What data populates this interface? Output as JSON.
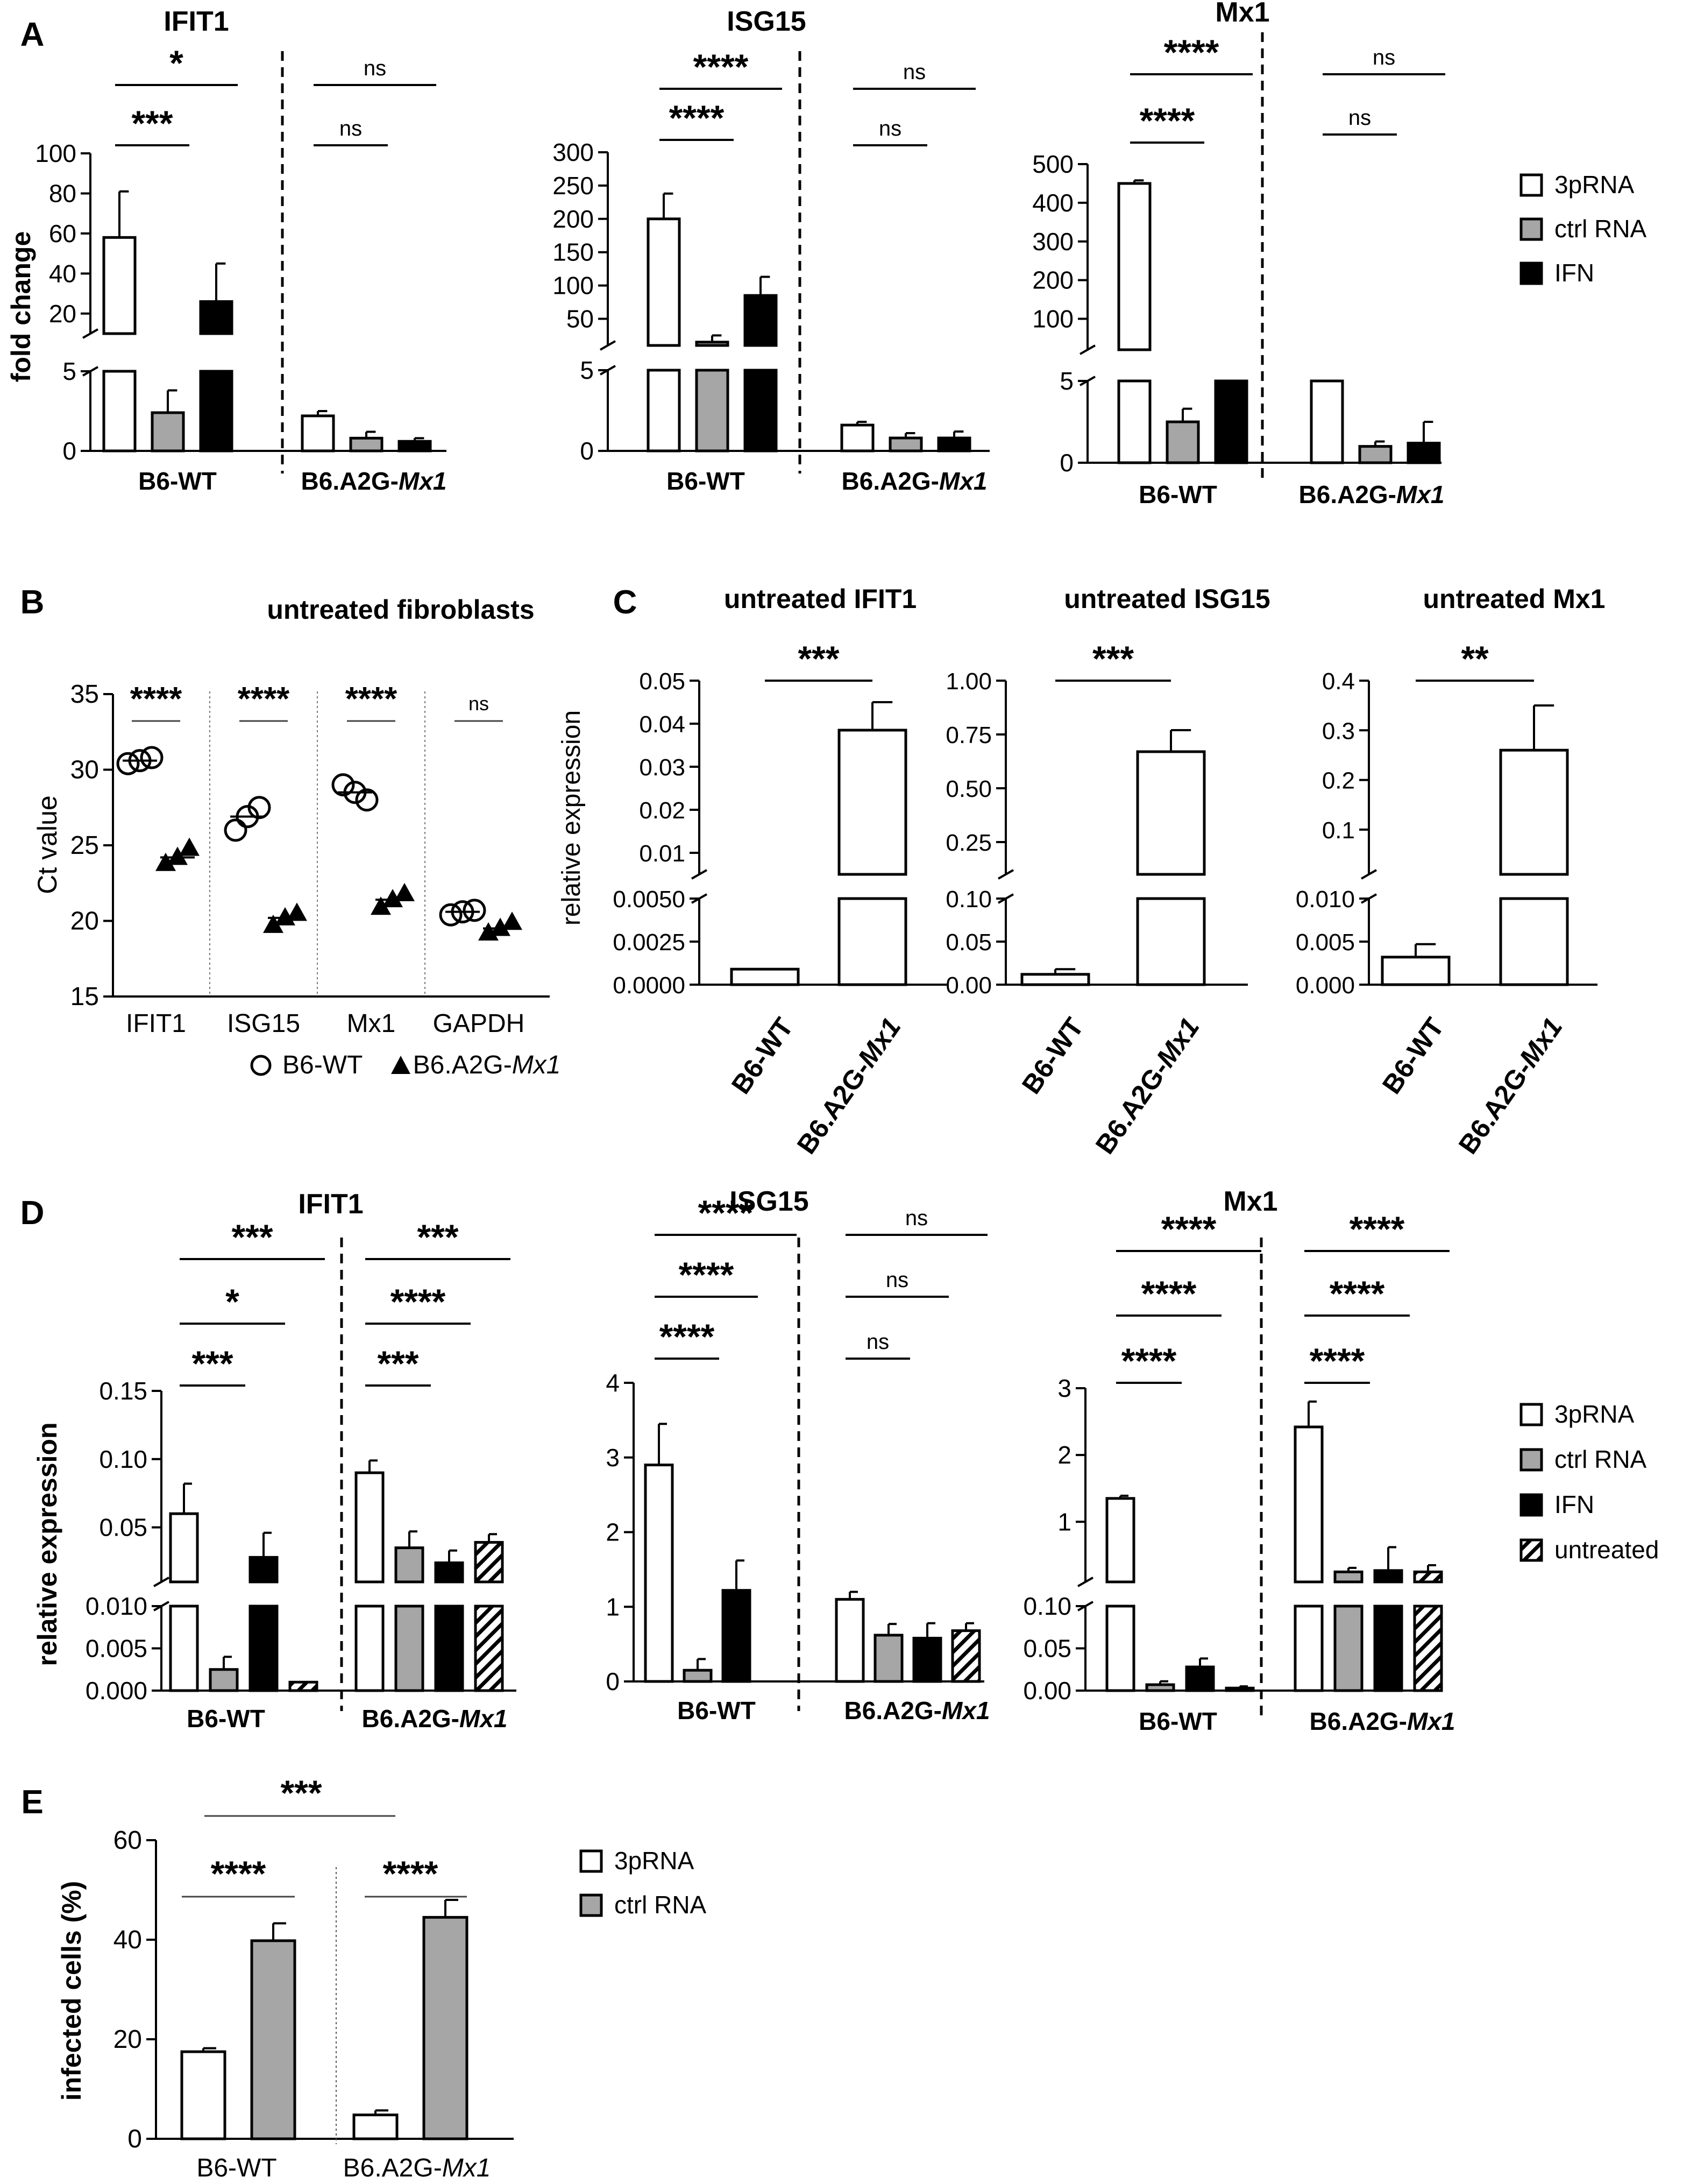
{
  "figure": {
    "panel_letters": [
      "A",
      "B",
      "C",
      "D",
      "E"
    ]
  },
  "colors": {
    "white_bar": "#ffffff",
    "gray_bar": "#a6a6a6",
    "black_bar": "#000000",
    "hatch_bar": "#000000",
    "axis": "#000000",
    "light_line": "#555555"
  },
  "chart_data": [
    {
      "id": "A1",
      "type": "bar",
      "panel": "A",
      "title": "IFIT1",
      "ylabel": "fold change",
      "groups": [
        "B6-WT",
        "B6.A2G-Mx1"
      ],
      "series": [
        {
          "name": "3pRNA",
          "values": [
            58,
            2.2
          ],
          "errors": [
            23,
            0.3
          ]
        },
        {
          "name": "ctrl RNA",
          "values": [
            2.4,
            0.8
          ],
          "errors": [
            1.4,
            0.4
          ]
        },
        {
          "name": "IFN",
          "values": [
            26,
            0.6
          ],
          "errors": [
            19,
            0.2
          ]
        }
      ],
      "y_segments": [
        {
          "range": [
            0,
            5
          ],
          "ticks": [
            "0",
            "5"
          ]
        },
        {
          "range": [
            10,
            100
          ],
          "ticks": [
            "20",
            "40",
            "60",
            "80",
            "100"
          ]
        }
      ],
      "significance": [
        {
          "label": "***",
          "from": "B6-WT:3pRNA",
          "to": "B6-WT:ctrl RNA"
        },
        {
          "label": "*",
          "from": "B6-WT:3pRNA",
          "to": "B6-WT:IFN"
        },
        {
          "label": "ns",
          "from": "B6.A2G-Mx1:3pRNA",
          "to": "B6.A2G-Mx1:ctrl RNA"
        },
        {
          "label": "ns",
          "from": "B6.A2G-Mx1:3pRNA",
          "to": "B6.A2G-Mx1:IFN"
        }
      ]
    },
    {
      "id": "A2",
      "type": "bar",
      "panel": "A",
      "title": "ISG15",
      "ylabel": "",
      "groups": [
        "B6-WT",
        "B6.A2G-Mx1"
      ],
      "series": [
        {
          "name": "3pRNA",
          "values": [
            200,
            1.6
          ],
          "errors": [
            38,
            0.2
          ]
        },
        {
          "name": "ctrl RNA",
          "values": [
            15,
            0.8
          ],
          "errors": [
            10,
            0.3
          ]
        },
        {
          "name": "IFN",
          "values": [
            85,
            0.8
          ],
          "errors": [
            28,
            0.4
          ]
        }
      ],
      "y_segments": [
        {
          "range": [
            0,
            5
          ],
          "ticks": [
            "0",
            "5"
          ]
        },
        {
          "range": [
            10,
            300
          ],
          "ticks": [
            "50",
            "100",
            "150",
            "200",
            "250",
            "300"
          ]
        }
      ],
      "significance": [
        {
          "label": "****",
          "from": "B6-WT:3pRNA",
          "to": "B6-WT:ctrl RNA"
        },
        {
          "label": "****",
          "from": "B6-WT:3pRNA",
          "to": "B6-WT:IFN"
        },
        {
          "label": "ns",
          "from": "B6.A2G-Mx1:3pRNA",
          "to": "B6.A2G-Mx1:ctrl RNA"
        },
        {
          "label": "ns",
          "from": "B6.A2G-Mx1:3pRNA",
          "to": "B6.A2G-Mx1:IFN"
        }
      ]
    },
    {
      "id": "A3",
      "type": "bar",
      "panel": "A",
      "title": "Mx1",
      "ylabel": "",
      "groups": [
        "B6-WT",
        "B6.A2G-Mx1"
      ],
      "series": [
        {
          "name": "3pRNA",
          "values": [
            450,
            5.3
          ],
          "errors": [
            8,
            0
          ]
        },
        {
          "name": "ctrl RNA",
          "values": [
            2.5,
            1.0
          ],
          "errors": [
            0.8,
            0.3
          ]
        },
        {
          "name": "IFN",
          "values": [
            5.2,
            1.2
          ],
          "errors": [
            0,
            1.3
          ]
        }
      ],
      "y_segments": [
        {
          "range": [
            0,
            5
          ],
          "ticks": [
            "0",
            "5"
          ]
        },
        {
          "range": [
            20,
            500
          ],
          "ticks": [
            "100",
            "200",
            "300",
            "400",
            "500"
          ]
        }
      ],
      "significance": [
        {
          "label": "****",
          "from": "B6-WT:3pRNA",
          "to": "B6-WT:ctrl RNA"
        },
        {
          "label": "****",
          "from": "B6-WT:3pRNA",
          "to": "B6-WT:IFN"
        },
        {
          "label": "ns",
          "from": "B6.A2G-Mx1:3pRNA",
          "to": "B6.A2G-Mx1:ctrl RNA"
        },
        {
          "label": "ns",
          "from": "B6.A2G-Mx1:3pRNA",
          "to": "B6.A2G-Mx1:IFN"
        }
      ]
    },
    {
      "id": "B",
      "type": "scatter",
      "panel": "B",
      "title": "untreated fibroblasts",
      "ylabel": "Ct value",
      "categories": [
        "IFIT1",
        "ISG15",
        "Mx1",
        "GAPDH"
      ],
      "ylim": [
        15,
        35
      ],
      "yticks": [
        "15",
        "20",
        "25",
        "30",
        "35"
      ],
      "series": [
        {
          "name": "B6-WT",
          "marker": "open-circle",
          "points": [
            [
              30.4,
              30.8,
              30.6
            ],
            [
              26.0,
              27.5,
              26.9
            ],
            [
              29.0,
              28.0,
              28.5
            ],
            [
              20.4,
              20.7,
              20.6
            ]
          ]
        },
        {
          "name": "B6.A2G-Mx1",
          "marker": "filled-triangle",
          "points": [
            [
              23.8,
              24.8,
              24.2
            ],
            [
              19.7,
              20.5,
              20.2
            ],
            [
              20.9,
              21.8,
              21.4
            ],
            [
              19.2,
              19.9,
              19.5
            ]
          ]
        }
      ],
      "significance": [
        "****",
        "****",
        "****",
        "ns"
      ],
      "legend": [
        {
          "label": "B6-WT"
        },
        {
          "label": "B6.A2G-Mx1"
        }
      ]
    },
    {
      "id": "C1",
      "type": "bar",
      "panel": "C",
      "title": "untreated IFIT1",
      "ylabel": "relative expression",
      "categories": [
        "B6-WT",
        "B6.A2G-Mx1"
      ],
      "values": [
        0.0009,
        0.0385
      ],
      "errors": [
        0,
        0.0065
      ],
      "y_segments": [
        {
          "range": [
            0,
            0.005
          ],
          "ticks": [
            "0.0000",
            "0.0025",
            "0.0050"
          ]
        },
        {
          "range": [
            0.005,
            0.05
          ],
          "ticks": [
            "0.01",
            "0.02",
            "0.03",
            "0.04",
            "0.05"
          ]
        }
      ],
      "significance": "***"
    },
    {
      "id": "C2",
      "type": "bar",
      "panel": "C",
      "title": "untreated ISG15",
      "ylabel": "",
      "categories": [
        "B6-WT",
        "B6.A2G-Mx1"
      ],
      "values": [
        0.012,
        0.67
      ],
      "errors": [
        0.006,
        0.1
      ],
      "y_segments": [
        {
          "range": [
            0,
            0.1
          ],
          "ticks": [
            "0.00",
            "0.05",
            "0.10"
          ]
        },
        {
          "range": [
            0.1,
            1.0
          ],
          "ticks": [
            "0.25",
            "0.50",
            "0.75",
            "1.00"
          ]
        }
      ],
      "significance": "***"
    },
    {
      "id": "C3",
      "type": "bar",
      "panel": "C",
      "title": "untreated Mx1",
      "ylabel": "",
      "categories": [
        "B6-WT",
        "B6.A2G-Mx1"
      ],
      "values": [
        0.0032,
        0.26
      ],
      "errors": [
        0.0015,
        0.09
      ],
      "y_segments": [
        {
          "range": [
            0,
            0.01
          ],
          "ticks": [
            "0.000",
            "0.005",
            "0.010"
          ]
        },
        {
          "range": [
            0.01,
            0.4
          ],
          "ticks": [
            "0.1",
            "0.2",
            "0.3",
            "0.4"
          ]
        }
      ],
      "significance": "**"
    },
    {
      "id": "D1",
      "type": "bar",
      "panel": "D",
      "title": "IFIT1",
      "ylabel": "relative expression",
      "groups": [
        "B6-WT",
        "B6.A2G-Mx1"
      ],
      "series": [
        {
          "name": "3pRNA",
          "values": [
            0.06,
            0.09
          ],
          "errors": [
            0.022,
            0.009
          ]
        },
        {
          "name": "ctrl RNA",
          "values": [
            0.0025,
            0.035
          ],
          "errors": [
            0.0015,
            0.012
          ]
        },
        {
          "name": "IFN",
          "values": [
            0.028,
            0.024
          ],
          "errors": [
            0.018,
            0.009
          ]
        },
        {
          "name": "untreated",
          "values": [
            0.001,
            0.039
          ],
          "errors": [
            0,
            0.006
          ]
        }
      ],
      "y_segments": [
        {
          "range": [
            0,
            0.01
          ],
          "ticks": [
            "0.000",
            "0.005",
            "0.010"
          ]
        },
        {
          "range": [
            0.01,
            0.15
          ],
          "ticks": [
            "0.05",
            "0.10",
            "0.15"
          ]
        }
      ],
      "significance": [
        {
          "label": "***",
          "from": "B6-WT:3pRNA",
          "to": "B6-WT:ctrl RNA"
        },
        {
          "label": "*",
          "from": "B6-WT:3pRNA",
          "to": "B6-WT:IFN"
        },
        {
          "label": "***",
          "from": "B6-WT:3pRNA",
          "to": "B6-WT:untreated"
        },
        {
          "label": "***",
          "from": "B6.A2G-Mx1:3pRNA",
          "to": "B6.A2G-Mx1:ctrl RNA"
        },
        {
          "label": "****",
          "from": "B6.A2G-Mx1:3pRNA",
          "to": "B6.A2G-Mx1:IFN"
        },
        {
          "label": "***",
          "from": "B6.A2G-Mx1:3pRNA",
          "to": "B6.A2G-Mx1:untreated"
        }
      ]
    },
    {
      "id": "D2",
      "type": "bar",
      "panel": "D",
      "title": "ISG15",
      "ylabel": "",
      "groups": [
        "B6-WT",
        "B6.A2G-Mx1"
      ],
      "series": [
        {
          "name": "3pRNA",
          "values": [
            2.9,
            1.1
          ],
          "errors": [
            0.55,
            0.1
          ]
        },
        {
          "name": "ctrl RNA",
          "values": [
            0.15,
            0.62
          ],
          "errors": [
            0.15,
            0.15
          ]
        },
        {
          "name": "IFN",
          "values": [
            1.22,
            0.58
          ],
          "errors": [
            0.4,
            0.2
          ]
        },
        {
          "name": "untreated",
          "values": [
            0,
            0.68
          ],
          "errors": [
            0,
            0.1
          ]
        }
      ],
      "ylim": [
        0,
        4
      ],
      "yticks": [
        "0",
        "1",
        "2",
        "3",
        "4"
      ],
      "significance": [
        {
          "label": "****",
          "from": "B6-WT:3pRNA",
          "to": "B6-WT:ctrl RNA"
        },
        {
          "label": "****",
          "from": "B6-WT:3pRNA",
          "to": "B6-WT:IFN"
        },
        {
          "label": "****",
          "from": "B6-WT:3pRNA",
          "to": "B6-WT:untreated"
        },
        {
          "label": "ns",
          "from": "B6.A2G-Mx1:3pRNA",
          "to": "B6.A2G-Mx1:ctrl RNA"
        },
        {
          "label": "ns",
          "from": "B6.A2G-Mx1:3pRNA",
          "to": "B6.A2G-Mx1:IFN"
        },
        {
          "label": "ns",
          "from": "B6.A2G-Mx1:3pRNA",
          "to": "B6.A2G-Mx1:untreated"
        }
      ]
    },
    {
      "id": "D3",
      "type": "bar",
      "panel": "D",
      "title": "Mx1",
      "ylabel": "",
      "groups": [
        "B6-WT",
        "B6.A2G-Mx1"
      ],
      "series": [
        {
          "name": "3pRNA",
          "values": [
            1.35,
            2.42
          ],
          "errors": [
            0.04,
            0.38
          ]
        },
        {
          "name": "ctrl RNA",
          "values": [
            0.007,
            0.25
          ],
          "errors": [
            0.004,
            0.06
          ]
        },
        {
          "name": "IFN",
          "values": [
            0.028,
            0.27
          ],
          "errors": [
            0.01,
            0.35
          ]
        },
        {
          "name": "untreated",
          "values": [
            0.003,
            0.25
          ],
          "errors": [
            0.002,
            0.1
          ]
        }
      ],
      "y_segments": [
        {
          "range": [
            0,
            0.1
          ],
          "ticks": [
            "0.00",
            "0.05",
            "0.10"
          ]
        },
        {
          "range": [
            0.1,
            3
          ],
          "ticks": [
            "1",
            "2",
            "3"
          ]
        }
      ],
      "significance": [
        {
          "label": "****",
          "from": "B6-WT:3pRNA",
          "to": "B6-WT:ctrl RNA"
        },
        {
          "label": "****",
          "from": "B6-WT:3pRNA",
          "to": "B6-WT:IFN"
        },
        {
          "label": "****",
          "from": "B6-WT:3pRNA",
          "to": "B6-WT:untreated"
        },
        {
          "label": "****",
          "from": "B6.A2G-Mx1:3pRNA",
          "to": "B6.A2G-Mx1:ctrl RNA"
        },
        {
          "label": "****",
          "from": "B6.A2G-Mx1:3pRNA",
          "to": "B6.A2G-Mx1:IFN"
        },
        {
          "label": "****",
          "from": "B6.A2G-Mx1:3pRNA",
          "to": "B6.A2G-Mx1:untreated"
        }
      ]
    },
    {
      "id": "E",
      "type": "bar",
      "panel": "E",
      "title": "",
      "ylabel": "infected cells (%)",
      "groups": [
        "B6-WT",
        "B6.A2G-Mx1"
      ],
      "series": [
        {
          "name": "3pRNA",
          "values": [
            17.5,
            4.8
          ],
          "errors": [
            0.7,
            0.9
          ]
        },
        {
          "name": "ctrl RNA",
          "values": [
            39.8,
            44.5
          ],
          "errors": [
            3.5,
            3.5
          ]
        }
      ],
      "ylim": [
        0,
        60
      ],
      "yticks": [
        "0",
        "20",
        "40",
        "60"
      ],
      "significance": [
        {
          "label": "****",
          "from": "B6-WT:3pRNA",
          "to": "B6-WT:ctrl RNA"
        },
        {
          "label": "****",
          "from": "B6.A2G-Mx1:3pRNA",
          "to": "B6.A2G-Mx1:ctrl RNA"
        },
        {
          "label": "***",
          "from": "B6-WT:3pRNA",
          "to": "B6.A2G-Mx1:3pRNA"
        }
      ]
    }
  ],
  "legends": {
    "A": [
      "3pRNA",
      "ctrl RNA",
      "IFN"
    ],
    "D": [
      "3pRNA",
      "ctrl RNA",
      "IFN",
      "untreated"
    ],
    "E": [
      "3pRNA",
      "ctrl  RNA"
    ]
  },
  "group_labels": {
    "wt": "B6-WT",
    "mut_prefix": "B6.A2G-",
    "mut_gene": "Mx1"
  }
}
